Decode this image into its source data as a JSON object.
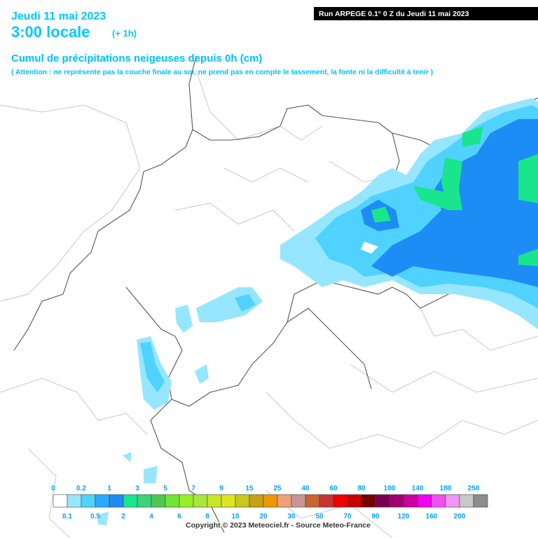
{
  "header": {
    "date": "Jeudi 11 mai 2023",
    "time": "3:00 locale",
    "offset": "(+ 1h)",
    "run": "Run ARPEGE 0.1° 0 Z du Jeudi 11 mai 2023"
  },
  "title": "Cumul de précipitations neigeuses depuis 0h (cm)",
  "subtitle": "( Attention : ne représente pas la couche finale au sol, ne prend pas en compte le tassement, la fonte ni la difficulté à tenir )",
  "legend": {
    "labels": [
      0,
      0.1,
      0.2,
      0.5,
      1,
      2,
      3,
      4,
      5,
      6,
      7,
      8,
      9,
      10,
      15,
      20,
      25,
      30,
      40,
      50,
      60,
      70,
      80,
      90,
      100,
      120,
      140,
      160,
      180,
      200,
      250
    ],
    "colors": [
      "#ffffff",
      "#96e6ff",
      "#50d2ff",
      "#2aaaff",
      "#1e8cf5",
      "#19e68c",
      "#3cd278",
      "#50c850",
      "#6ee632",
      "#96f028",
      "#aae63c",
      "#c8e628",
      "#dce61e",
      "#c8c81e",
      "#c8a014",
      "#f09600",
      "#f0a078",
      "#c89696",
      "#c86432",
      "#c83232",
      "#f00000",
      "#c80000",
      "#780000",
      "#780050",
      "#a0006e",
      "#c800a0",
      "#f000f0",
      "#f050f0",
      "#f096f0",
      "#c8c8c8",
      "#8c8c8c"
    ]
  },
  "copyright": "Copyright © 2023 Meteociel.fr - Source Meteo-France"
}
